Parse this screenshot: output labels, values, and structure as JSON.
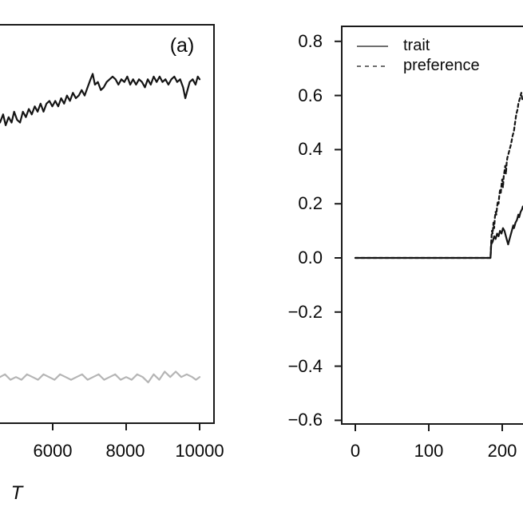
{
  "figure": {
    "background": "#ffffff",
    "axis_color": "#1a1a1a",
    "text_color": "#0a0a0a"
  },
  "chart_data": [
    {
      "type": "line",
      "panel": "a",
      "panel_label": "(a)",
      "xlabel": "T",
      "grid": false,
      "x_ticks": {
        "values": [
          6000,
          8000,
          10000
        ],
        "labels": [
          "6000",
          "8000",
          "10000"
        ]
      },
      "x_range_visible": [
        4565,
        10390
      ],
      "y_axis_visible": false,
      "series": [
        {
          "name": "black-line",
          "color": "#141414",
          "style": "solid",
          "x": [
            4565,
            4650,
            4720,
            4800,
            4880,
            4950,
            5030,
            5110,
            5190,
            5270,
            5350,
            5430,
            5510,
            5590,
            5670,
            5750,
            5830,
            5910,
            5990,
            6070,
            6150,
            6230,
            6310,
            6390,
            6470,
            6550,
            6630,
            6710,
            6790,
            6870,
            6950,
            7030,
            7090,
            7150,
            7230,
            7310,
            7390,
            7470,
            7550,
            7630,
            7710,
            7790,
            7870,
            7950,
            8030,
            8110,
            8190,
            8270,
            8350,
            8430,
            8510,
            8590,
            8670,
            8750,
            8830,
            8910,
            8990,
            9070,
            9150,
            9230,
            9310,
            9390,
            9470,
            9550,
            9610,
            9670,
            9730,
            9810,
            9890,
            9950,
            10000
          ],
          "y": [
            0.5,
            0.53,
            0.49,
            0.52,
            0.5,
            0.54,
            0.51,
            0.5,
            0.54,
            0.52,
            0.55,
            0.53,
            0.56,
            0.54,
            0.57,
            0.54,
            0.57,
            0.58,
            0.56,
            0.58,
            0.56,
            0.59,
            0.57,
            0.6,
            0.58,
            0.61,
            0.59,
            0.6,
            0.62,
            0.6,
            0.63,
            0.66,
            0.68,
            0.64,
            0.65,
            0.62,
            0.63,
            0.65,
            0.66,
            0.67,
            0.66,
            0.64,
            0.66,
            0.65,
            0.67,
            0.64,
            0.66,
            0.64,
            0.66,
            0.65,
            0.63,
            0.66,
            0.64,
            0.67,
            0.65,
            0.67,
            0.65,
            0.66,
            0.64,
            0.66,
            0.67,
            0.65,
            0.66,
            0.63,
            0.59,
            0.62,
            0.65,
            0.66,
            0.64,
            0.67,
            0.66
          ]
        },
        {
          "name": "gray-line",
          "color": "#b5b5b5",
          "style": "solid",
          "x": [
            4565,
            4700,
            4850,
            5000,
            5150,
            5300,
            5450,
            5600,
            5750,
            5900,
            6050,
            6200,
            6350,
            6500,
            6650,
            6800,
            6950,
            7100,
            7250,
            7400,
            7550,
            7700,
            7850,
            8000,
            8150,
            8300,
            8450,
            8600,
            8750,
            8900,
            9050,
            9200,
            9350,
            9500,
            9650,
            9800,
            9900,
            10000
          ],
          "y": [
            -0.44,
            -0.43,
            -0.45,
            -0.44,
            -0.45,
            -0.43,
            -0.44,
            -0.45,
            -0.43,
            -0.44,
            -0.45,
            -0.43,
            -0.44,
            -0.45,
            -0.44,
            -0.43,
            -0.45,
            -0.44,
            -0.43,
            -0.45,
            -0.44,
            -0.43,
            -0.45,
            -0.44,
            -0.45,
            -0.43,
            -0.44,
            -0.46,
            -0.43,
            -0.45,
            -0.42,
            -0.44,
            -0.42,
            -0.44,
            -0.43,
            -0.44,
            -0.45,
            -0.44
          ]
        }
      ]
    },
    {
      "type": "line",
      "panel": "b",
      "grid": false,
      "legend": {
        "position": "top-left",
        "entries": [
          {
            "label": "trait",
            "style": "solid"
          },
          {
            "label": "preference",
            "style": "dashed"
          }
        ]
      },
      "x_ticks": {
        "values": [
          0,
          100,
          200
        ],
        "labels": [
          "0",
          "100",
          "200"
        ]
      },
      "y_ticks": {
        "values": [
          0.8,
          0.6,
          0.4,
          0.2,
          0.0,
          -0.2,
          -0.4,
          -0.6
        ],
        "labels": [
          "0.8",
          "0.6",
          "0.4",
          "0.2",
          "0.0",
          "−0.2",
          "−0.4",
          "−0.6"
        ]
      },
      "ylim": [
        -0.66,
        0.86
      ],
      "x_range_visible": [
        -20,
        228
      ],
      "series": [
        {
          "name": "trait",
          "color": "#141414",
          "style": "solid",
          "x": [
            0,
            20,
            40,
            60,
            80,
            100,
            120,
            140,
            160,
            180,
            184,
            185,
            187,
            189,
            191,
            193,
            195,
            197,
            199,
            201,
            203,
            204,
            206,
            208,
            209,
            211,
            213,
            215,
            216,
            218,
            220,
            222,
            223,
            225,
            227,
            228
          ],
          "y": [
            0,
            0,
            0,
            0,
            0,
            0,
            0,
            0,
            0,
            0,
            0,
            0.05,
            0.06,
            0.08,
            0.07,
            0.09,
            0.08,
            0.1,
            0.09,
            0.11,
            0.1,
            0.09,
            0.07,
            0.05,
            0.06,
            0.08,
            0.1,
            0.12,
            0.11,
            0.13,
            0.14,
            0.16,
            0.15,
            0.17,
            0.18,
            0.19
          ]
        },
        {
          "name": "preference",
          "color": "#141414",
          "style": "dashed",
          "x": [
            0,
            20,
            40,
            60,
            80,
            100,
            120,
            140,
            160,
            180,
            184,
            185,
            186,
            187,
            188,
            189,
            190,
            191,
            192,
            193,
            194,
            195,
            196,
            197,
            198,
            199,
            200,
            201,
            202,
            203,
            204,
            205,
            206,
            207,
            208,
            210,
            212,
            214,
            216,
            217,
            218,
            219,
            221,
            222,
            223,
            225,
            226,
            227,
            228
          ],
          "y": [
            0,
            0,
            0,
            0,
            0,
            0,
            0,
            0,
            0,
            0,
            0,
            0.06,
            0.1,
            0.09,
            0.13,
            0.11,
            0.15,
            0.17,
            0.16,
            0.19,
            0.21,
            0.2,
            0.23,
            0.25,
            0.24,
            0.27,
            0.29,
            0.26,
            0.3,
            0.32,
            0.34,
            0.31,
            0.35,
            0.37,
            0.38,
            0.4,
            0.42,
            0.45,
            0.47,
            0.49,
            0.51,
            0.53,
            0.55,
            0.57,
            0.58,
            0.6,
            0.61,
            0.59,
            0.58
          ]
        }
      ]
    }
  ]
}
